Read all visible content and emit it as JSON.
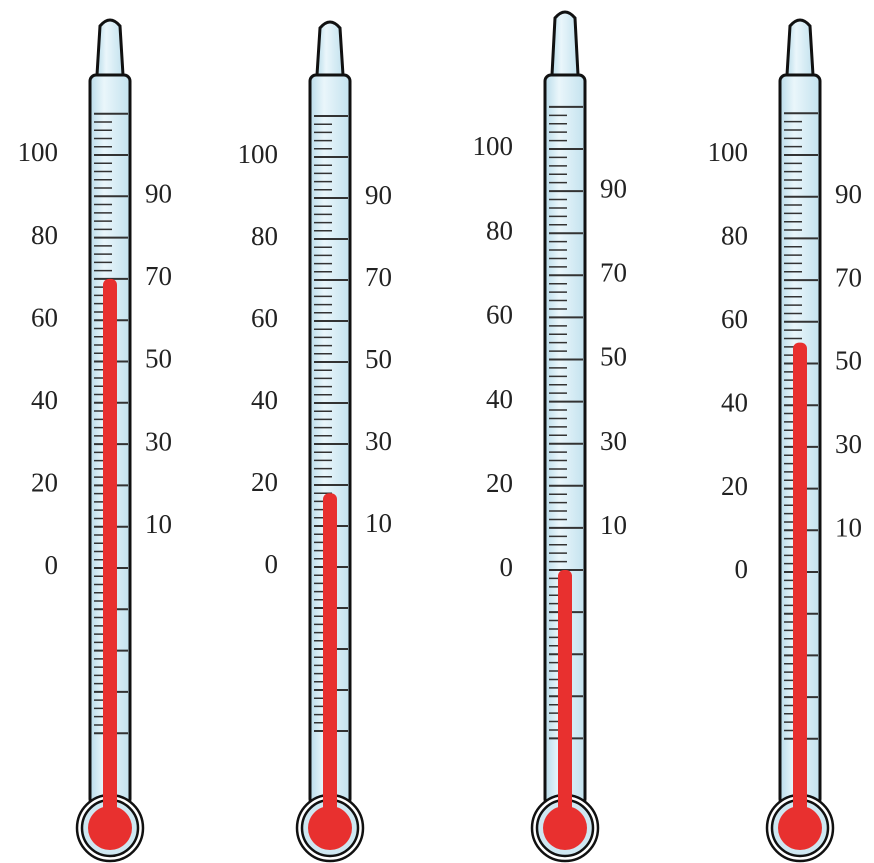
{
  "thermometers": [
    {
      "left_labels": [
        100,
        80,
        60,
        40,
        20,
        0
      ],
      "right_labels": [
        90,
        70,
        50,
        30,
        10
      ],
      "reading": 70
    },
    {
      "left_labels": [
        100,
        80,
        60,
        40,
        20,
        0
      ],
      "right_labels": [
        90,
        70,
        50,
        30,
        10
      ],
      "reading": 18
    },
    {
      "left_labels": [
        100,
        80,
        60,
        40,
        20,
        0
      ],
      "right_labels": [
        90,
        70,
        50,
        30,
        10
      ],
      "reading": 0
    },
    {
      "left_labels": [
        100,
        80,
        60,
        40,
        20,
        0
      ],
      "right_labels": [
        90,
        70,
        50,
        30,
        10
      ],
      "reading": 55
    }
  ]
}
